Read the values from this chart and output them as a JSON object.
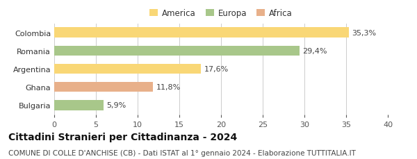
{
  "categories": [
    "Colombia",
    "Romania",
    "Argentina",
    "Ghana",
    "Bulgaria"
  ],
  "values": [
    35.3,
    29.4,
    17.6,
    11.8,
    5.9
  ],
  "labels": [
    "35,3%",
    "29,4%",
    "17,6%",
    "11,8%",
    "5,9%"
  ],
  "bar_colors": [
    "#f9d776",
    "#a8c78a",
    "#f9d776",
    "#e8b08a",
    "#a8c78a"
  ],
  "legend": [
    {
      "label": "America",
      "color": "#f9d776"
    },
    {
      "label": "Europa",
      "color": "#a8c78a"
    },
    {
      "label": "Africa",
      "color": "#e8b08a"
    }
  ],
  "xlim": [
    0,
    40
  ],
  "xticks": [
    0,
    5,
    10,
    15,
    20,
    25,
    30,
    35,
    40
  ],
  "title": "Cittadini Stranieri per Cittadinanza - 2024",
  "subtitle": "COMUNE DI COLLE D'ANCHISE (CB) - Dati ISTAT al 1° gennaio 2024 - Elaborazione TUTTITALIA.IT",
  "title_fontsize": 10,
  "subtitle_fontsize": 7.5,
  "label_fontsize": 8,
  "tick_fontsize": 8,
  "legend_fontsize": 8.5,
  "background_color": "#ffffff",
  "bar_height": 0.55
}
